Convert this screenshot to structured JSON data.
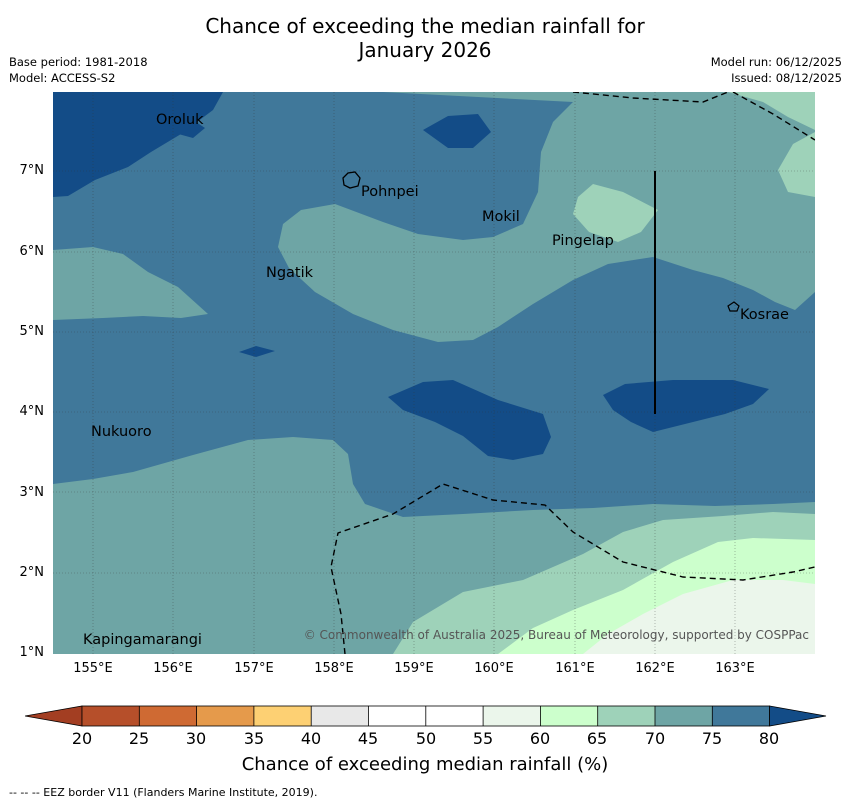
{
  "title_line1": "Chance of exceeding the median rainfall for",
  "title_line2": "January 2026",
  "meta_left": {
    "base_period": "Base period: 1981-2018",
    "model": "Model: ACCESS-S2"
  },
  "meta_right": {
    "model_run": "Model run: 06/12/2025",
    "issued": "Issued: 08/12/2025"
  },
  "map": {
    "y_ticks": [
      "7°N",
      "6°N",
      "5°N",
      "4°N",
      "3°N",
      "2°N",
      "1°N"
    ],
    "x_ticks": [
      "155°E",
      "156°E",
      "157°E",
      "158°E",
      "159°E",
      "160°E",
      "161°E",
      "162°E",
      "163°E"
    ],
    "places": [
      "Oroluk",
      "Pohnpei",
      "Mokil",
      "Pingelap",
      "Ngatik",
      "Kosrae",
      "Nukuoro",
      "Kapingamarangi"
    ],
    "copyright": "© Commonwealth of Australia 2025, Bureau of Meteorology, supported by COSPPac"
  },
  "colorbar": {
    "ticks": [
      "20",
      "25",
      "30",
      "35",
      "40",
      "45",
      "50",
      "55",
      "60",
      "65",
      "70",
      "75",
      "80"
    ],
    "label": "Chance of exceeding median rainfall (%)",
    "colors": {
      "below_20": "#a33e22",
      "c20_25": "#b64f2a",
      "c25_30": "#cf6a33",
      "c30_35": "#e59a4b",
      "c35_40": "#fdd073",
      "c40_45": "#e8e8e8",
      "c45_50": "#ffffff",
      "c50_55": "#ffffff",
      "c55_60": "#ebf6eb",
      "c60_65": "#ccffcc",
      "c65_70": "#9ed2b9",
      "c70_75": "#6ea5a5",
      "c75_80": "#40789a",
      "above_80": "#134c87"
    }
  },
  "footnote": "-- -- -- EEZ border V11 (Flanders Marine Institute, 2019)."
}
